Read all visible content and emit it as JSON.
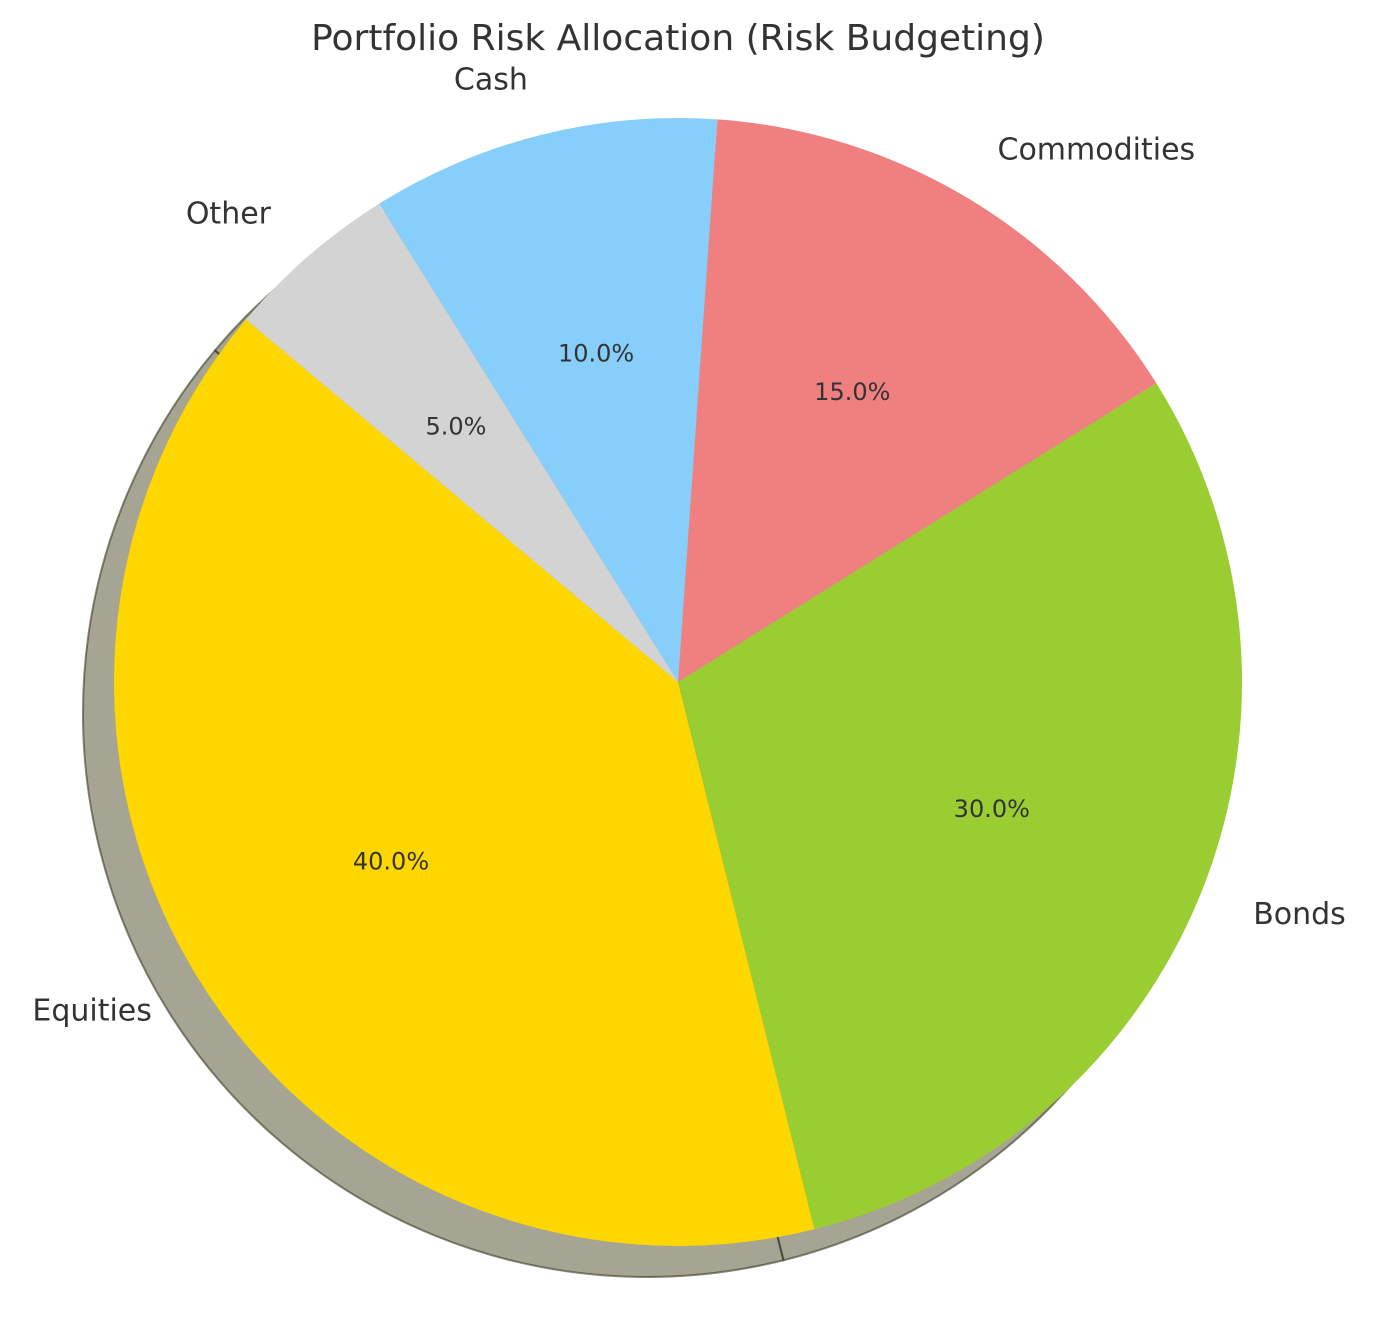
{
  "chart_data": {
    "type": "pie",
    "title": "Portfolio Risk Allocation (Risk Budgeting)",
    "start_angle_deg": 140,
    "direction": "counterclockwise",
    "shadow": true,
    "slices": [
      {
        "label": "Equities",
        "value": 40.0,
        "pct_label": "40.0%",
        "color": "#FFD700"
      },
      {
        "label": "Bonds",
        "value": 30.0,
        "pct_label": "30.0%",
        "color": "#9ACD32"
      },
      {
        "label": "Commodities",
        "value": 15.0,
        "pct_label": "15.0%",
        "color": "#F08080"
      },
      {
        "label": "Cash",
        "value": 10.0,
        "pct_label": "10.0%",
        "color": "#87CEFA"
      },
      {
        "label": "Other",
        "value": 5.0,
        "pct_label": "5.0%",
        "color": "#D3D3D3"
      }
    ]
  }
}
